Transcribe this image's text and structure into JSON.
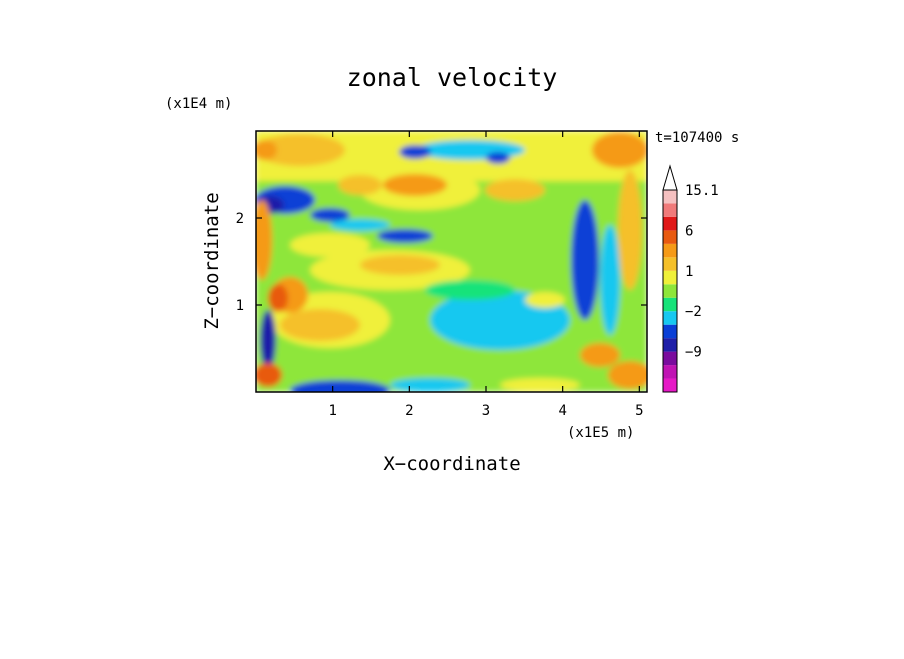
{
  "chart_data": {
    "type": "heatmap",
    "title": "zonal velocity",
    "xlabel": "X−coordinate",
    "ylabel": "Z−coordinate",
    "x_unit": "(x1E5 m)",
    "y_unit": "(x1E4 m)",
    "time_label": "t=107400 s",
    "xlim": [
      0,
      5.1
    ],
    "ylim": [
      0,
      3.0
    ],
    "x_ticks": [
      {
        "value": 1,
        "label": "1"
      },
      {
        "value": 2,
        "label": "2"
      },
      {
        "value": 3,
        "label": "3"
      },
      {
        "value": 4,
        "label": "4"
      },
      {
        "value": 5,
        "label": "5"
      }
    ],
    "y_ticks": [
      {
        "value": 1,
        "label": "1"
      },
      {
        "value": 2,
        "label": "2"
      }
    ],
    "colorbar": {
      "levels": [
        -15,
        -12,
        -9,
        -6,
        -4,
        -2,
        -1,
        0,
        1,
        2,
        4,
        6,
        9,
        12,
        15.1
      ],
      "labels": [
        {
          "value": 15.1,
          "label": "15.1"
        },
        {
          "value": 6,
          "label": "6"
        },
        {
          "value": 1,
          "label": "1"
        },
        {
          "value": -2,
          "label": "−2"
        },
        {
          "value": -9,
          "label": "−9"
        }
      ],
      "colors": [
        "#e619c6",
        "#c014b4",
        "#7a0c9e",
        "#1f1fa8",
        "#0a3fd6",
        "#17c8f0",
        "#17e37a",
        "#8ee63a",
        "#f0f03a",
        "#f5c02a",
        "#f59a18",
        "#e85a10",
        "#e01818",
        "#f07a7a",
        "#f5c0c0"
      ],
      "extend_max": true
    }
  }
}
